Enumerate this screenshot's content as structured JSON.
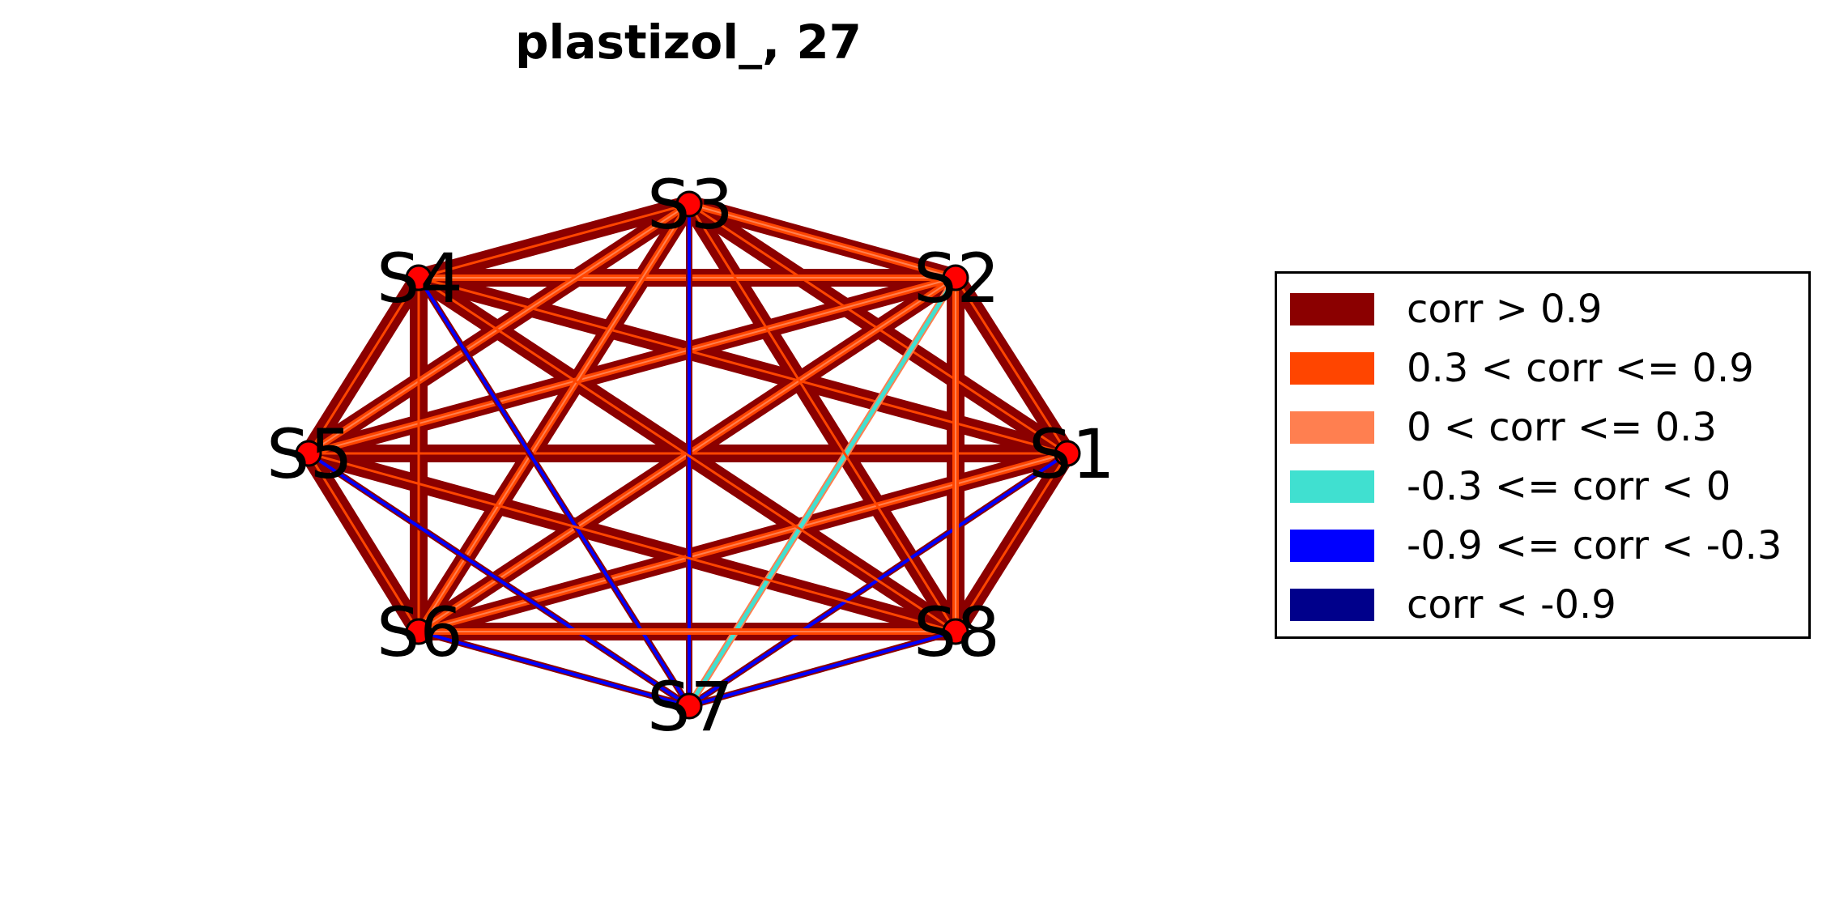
{
  "title": "plastizol_, 27",
  "nodes": [
    {
      "id": "S1",
      "label": "S1"
    },
    {
      "id": "S2",
      "label": "S2"
    },
    {
      "id": "S3",
      "label": "S3"
    },
    {
      "id": "S4",
      "label": "S4"
    },
    {
      "id": "S5",
      "label": "S5"
    },
    {
      "id": "S6",
      "label": "S6"
    },
    {
      "id": "S7",
      "label": "S7"
    },
    {
      "id": "S8",
      "label": "S8"
    }
  ],
  "edges": [
    {
      "source": "S1",
      "target": "S2",
      "class": "corr > 0.9"
    },
    {
      "source": "S1",
      "target": "S3",
      "class": "corr > 0.9"
    },
    {
      "source": "S1",
      "target": "S4",
      "class": "corr > 0.9"
    },
    {
      "source": "S1",
      "target": "S5",
      "class": "corr > 0.9"
    },
    {
      "source": "S1",
      "target": "S6",
      "class": "0.3 < corr <= 0.9"
    },
    {
      "source": "S1",
      "target": "S7",
      "class": "-0.9 <= corr < -0.3"
    },
    {
      "source": "S1",
      "target": "S8",
      "class": "corr > 0.9"
    },
    {
      "source": "S2",
      "target": "S3",
      "class": "0.3 < corr <= 0.9"
    },
    {
      "source": "S2",
      "target": "S4",
      "class": "0.3 < corr <= 0.9"
    },
    {
      "source": "S2",
      "target": "S5",
      "class": "0.3 < corr <= 0.9"
    },
    {
      "source": "S2",
      "target": "S6",
      "class": "0.3 < corr <= 0.9"
    },
    {
      "source": "S2",
      "target": "S7",
      "class": "-0.3 <= corr < 0"
    },
    {
      "source": "S2",
      "target": "S8",
      "class": "0.3 < corr <= 0.9"
    },
    {
      "source": "S3",
      "target": "S4",
      "class": "corr > 0.9"
    },
    {
      "source": "S3",
      "target": "S5",
      "class": "0.3 < corr <= 0.9"
    },
    {
      "source": "S3",
      "target": "S6",
      "class": "0.3 < corr <= 0.9"
    },
    {
      "source": "S3",
      "target": "S7",
      "class": "-0.9 <= corr < -0.3"
    },
    {
      "source": "S3",
      "target": "S8",
      "class": "corr > 0.9"
    },
    {
      "source": "S4",
      "target": "S5",
      "class": "corr > 0.9"
    },
    {
      "source": "S4",
      "target": "S6",
      "class": "corr > 0.9"
    },
    {
      "source": "S4",
      "target": "S7",
      "class": "-0.9 <= corr < -0.3"
    },
    {
      "source": "S4",
      "target": "S8",
      "class": "corr > 0.9"
    },
    {
      "source": "S5",
      "target": "S6",
      "class": "corr > 0.9"
    },
    {
      "source": "S5",
      "target": "S7",
      "class": "-0.9 <= corr < -0.3"
    },
    {
      "source": "S5",
      "target": "S8",
      "class": "corr > 0.9"
    },
    {
      "source": "S6",
      "target": "S7",
      "class": "-0.9 <= corr < -0.3"
    },
    {
      "source": "S6",
      "target": "S8",
      "class": "0.3 < corr <= 0.9"
    },
    {
      "source": "S7",
      "target": "S8",
      "class": "-0.9 <= corr < -0.3"
    }
  ],
  "legend": [
    {
      "label": "corr > 0.9",
      "color": "#8b0000"
    },
    {
      "label": "0.3 < corr <= 0.9",
      "color": "#ff4500"
    },
    {
      "label": "0 < corr <= 0.3",
      "color": "#ff7f50"
    },
    {
      "label": "-0.3 <= corr < 0",
      "color": "#40e0d0"
    },
    {
      "label": "-0.9 <= corr < -0.3",
      "color": "#0000ff"
    },
    {
      "label": "corr < -0.9",
      "color": "#00008b"
    }
  ],
  "node_color": "#ff0000"
}
